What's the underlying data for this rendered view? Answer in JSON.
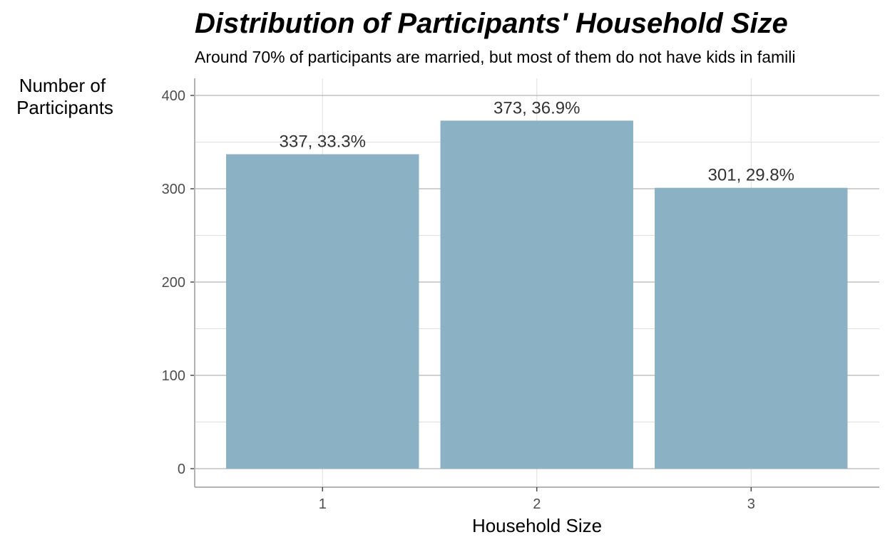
{
  "chart_data": {
    "type": "bar",
    "title": "Distribution of Participants' Household Size",
    "subtitle": "Around 70% of participants are married, but most of them do not have kids in famili",
    "xlabel": "Household Size",
    "ylabel": [
      "Number of",
      "Participants"
    ],
    "categories": [
      "1",
      "2",
      "3"
    ],
    "values": [
      337,
      373,
      301
    ],
    "data_labels": [
      "337, 33.3%",
      "373, 36.9%",
      "301, 29.8%"
    ],
    "ylim": [
      0,
      400
    ],
    "yticks": [
      0,
      100,
      200,
      300,
      400
    ],
    "grid": true,
    "legend": "none",
    "colors": {
      "bar": "#8bb2c4",
      "grid_major": "#b3b3b3",
      "grid_minor": "#dedede",
      "axis": "#b3b3b3"
    }
  }
}
